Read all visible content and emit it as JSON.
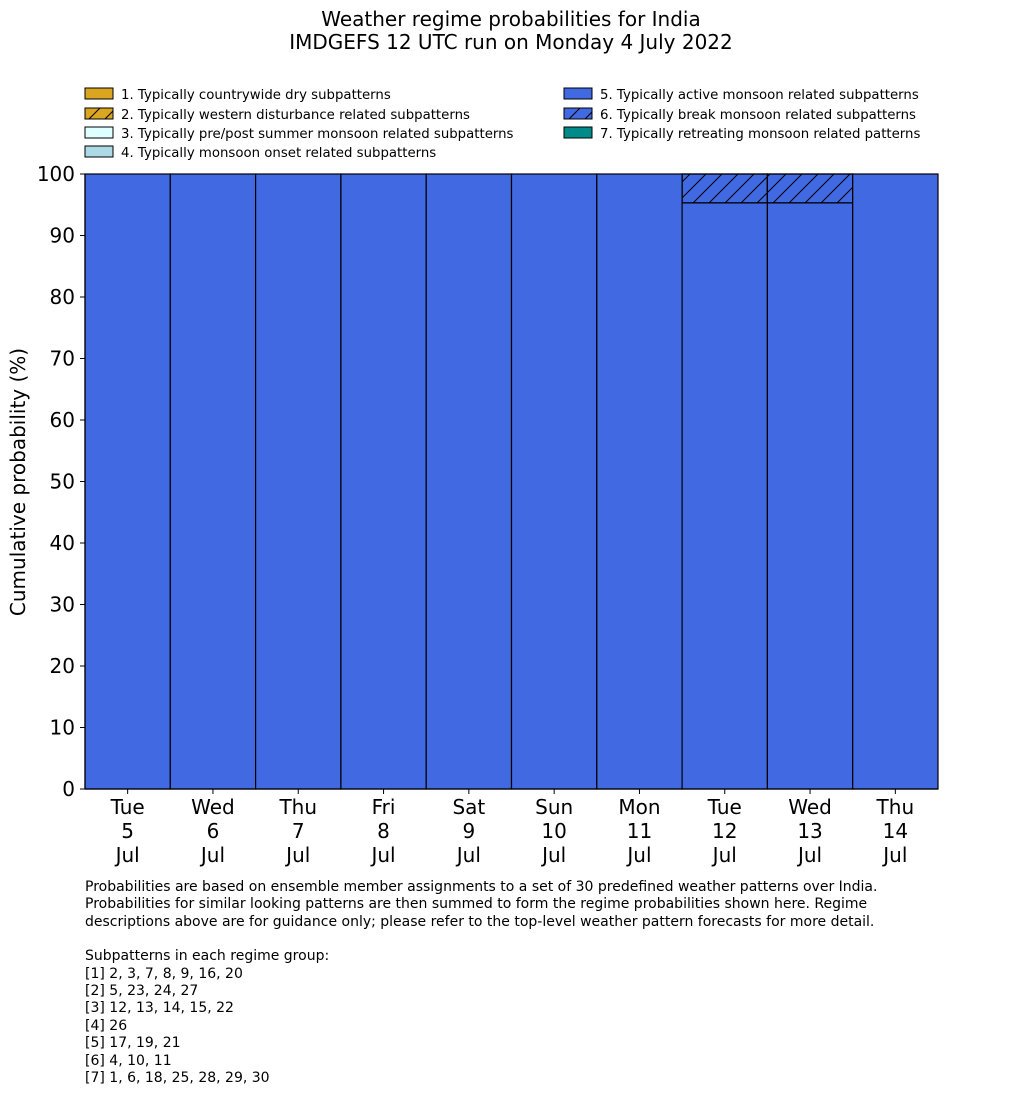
{
  "chart_data": {
    "type": "bar",
    "stacked": true,
    "title": "Weather regime probabilities for India",
    "subtitle": "IMDGEFS 12 UTC run on Monday 4 July 2022",
    "ylabel": "Cumulative probability (%)",
    "xlabel": "",
    "ylim": [
      0,
      100
    ],
    "yticks": [
      0,
      10,
      20,
      30,
      40,
      50,
      60,
      70,
      80,
      90,
      100
    ],
    "grid": false,
    "legend_position": "top",
    "categories": [
      [
        "Tue",
        "5",
        "Jul"
      ],
      [
        "Wed",
        "6",
        "Jul"
      ],
      [
        "Thu",
        "7",
        "Jul"
      ],
      [
        "Fri",
        "8",
        "Jul"
      ],
      [
        "Sat",
        "9",
        "Jul"
      ],
      [
        "Sun",
        "10",
        "Jul"
      ],
      [
        "Mon",
        "11",
        "Jul"
      ],
      [
        "Tue",
        "12",
        "Jul"
      ],
      [
        "Wed",
        "13",
        "Jul"
      ],
      [
        "Thu",
        "14",
        "Jul"
      ]
    ],
    "series": [
      {
        "name": "1. Typically countrywide dry subpatterns",
        "color": "#DAA520",
        "hatch": false,
        "values": [
          0,
          0,
          0,
          0,
          0,
          0,
          0,
          0,
          0,
          0
        ]
      },
      {
        "name": "2. Typically western disturbance related subpatterns",
        "color": "#DAA520",
        "hatch": true,
        "values": [
          0,
          0,
          0,
          0,
          0,
          0,
          0,
          0,
          0,
          0
        ]
      },
      {
        "name": "3. Typically pre/post summer monsoon related subpatterns",
        "color": "#E0FFFF",
        "hatch": false,
        "values": [
          0,
          0,
          0,
          0,
          0,
          0,
          0,
          0,
          0,
          0
        ]
      },
      {
        "name": "4. Typically monsoon onset related subpatterns",
        "color": "#ADD8E6",
        "hatch": false,
        "values": [
          0,
          0,
          0,
          0,
          0,
          0,
          0,
          0,
          0,
          0
        ]
      },
      {
        "name": "5. Typically active monsoon related subpatterns",
        "color": "#4169E1",
        "hatch": false,
        "values": [
          100,
          100,
          100,
          100,
          100,
          100,
          100,
          95.3,
          95.3,
          100
        ]
      },
      {
        "name": "6. Typically break monsoon related subpatterns",
        "color": "#4169E1",
        "hatch": true,
        "values": [
          0,
          0,
          0,
          0,
          0,
          0,
          0,
          4.7,
          4.7,
          0
        ]
      },
      {
        "name": "7. Typically retreating monsoon related patterns",
        "color": "#008B8B",
        "hatch": false,
        "values": [
          0,
          0,
          0,
          0,
          0,
          0,
          0,
          0,
          0,
          0
        ]
      }
    ]
  },
  "notes": {
    "line1": "Probabilities are based on ensemble member assignments to a set of 30 predefined weather patterns over India.",
    "line2": "Probabilities for similar looking patterns are then summed to form the regime probabilities shown here. Regime",
    "line3": "descriptions above are for guidance only; please refer to the top-level weather pattern forecasts for more detail.",
    "heading": "Subpatterns in each regime group:",
    "groups": [
      "[1] 2, 3, 7, 8, 9, 16, 20",
      "[2] 5, 23, 24, 27",
      "[3] 12, 13, 14, 15, 22",
      "[4] 26",
      "[5] 17, 19, 21",
      "[6] 4, 10, 11",
      "[7] 1, 6, 18, 25, 28, 29, 30"
    ]
  }
}
